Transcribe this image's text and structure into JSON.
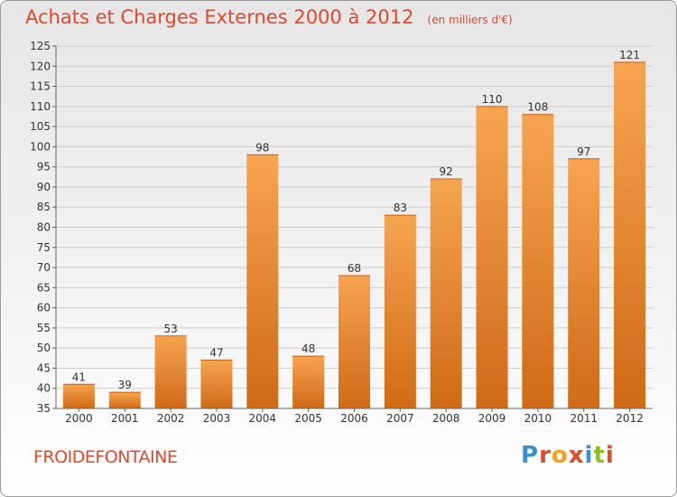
{
  "header": {
    "title": "Achats et Charges Externes 2000 à 2012",
    "subtitle": "(en milliers d'€)"
  },
  "footer": {
    "commune": "FROIDEFONTAINE",
    "brand": "Proxiti"
  },
  "colors": {
    "title": "#e4472c",
    "bar_light": "#f7a450",
    "bar_dark": "#d06a15",
    "grid": "#cccccc",
    "axis": "#666666",
    "brand_letters": [
      "#3a8fd0",
      "#e04b2a",
      "#f2a01d",
      "#e04b2a",
      "#3a8fd0",
      "#8cbf26",
      "#e04b2a"
    ]
  },
  "chart_data": {
    "type": "bar",
    "title": "Achats et Charges Externes 2000 à 2012",
    "subtitle": "(en milliers d'€)",
    "xlabel": "",
    "ylabel": "",
    "categories": [
      "2000",
      "2001",
      "2002",
      "2003",
      "2004",
      "2005",
      "2006",
      "2007",
      "2008",
      "2009",
      "2010",
      "2011",
      "2012"
    ],
    "values": [
      41,
      39,
      53,
      47,
      98,
      48,
      68,
      83,
      92,
      110,
      108,
      97,
      121
    ],
    "value_labels": [
      "41",
      "39",
      "53",
      "47",
      "98",
      "48",
      "68",
      "83",
      "92",
      "110",
      "108",
      "97",
      "121"
    ],
    "ylim": [
      35,
      125
    ],
    "yticks": [
      35,
      40,
      45,
      50,
      55,
      60,
      65,
      70,
      75,
      80,
      85,
      90,
      95,
      100,
      105,
      110,
      115,
      120,
      125
    ],
    "grid": true,
    "legend": "none"
  }
}
